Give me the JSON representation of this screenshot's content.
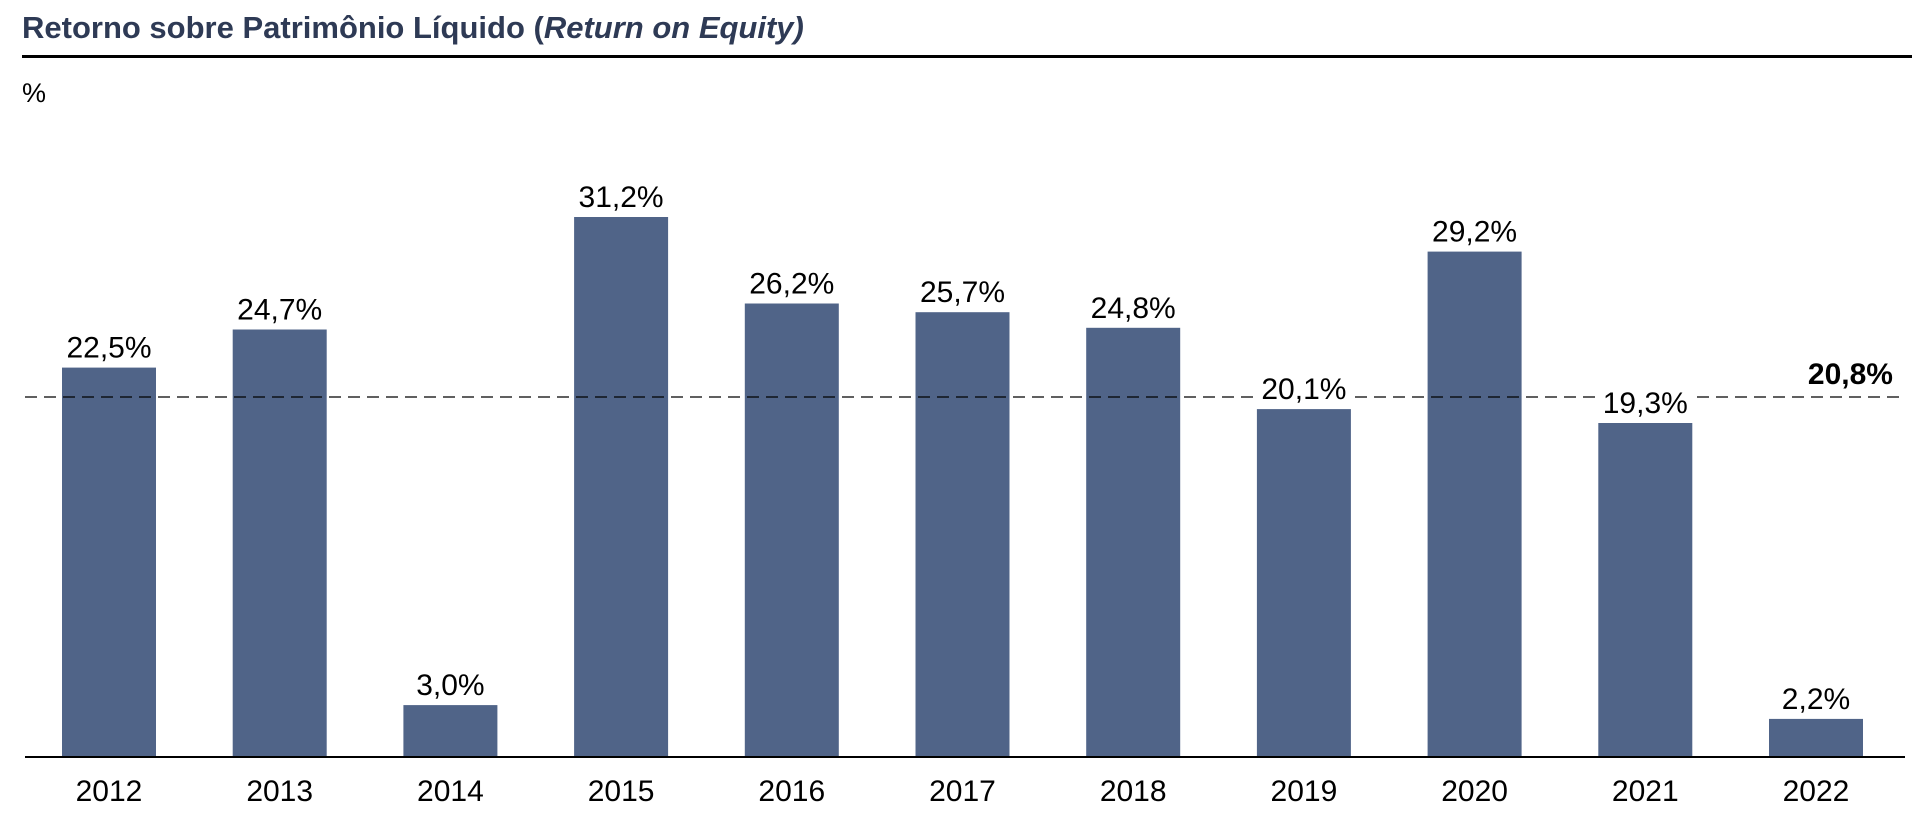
{
  "header": {
    "title_main": "Retorno sobre Patrimônio Líquido (",
    "title_italic": "Return on Equity)",
    "unit": "%"
  },
  "chart_data": {
    "type": "bar",
    "categories": [
      "2012",
      "2013",
      "2014",
      "2015",
      "2016",
      "2017",
      "2018",
      "2019",
      "2020",
      "2021",
      "2022"
    ],
    "values": [
      22.5,
      24.7,
      3.0,
      31.2,
      26.2,
      25.7,
      24.8,
      20.1,
      29.2,
      19.3,
      2.2
    ],
    "data_labels": [
      "22,5%",
      "24,7%",
      "3,0%",
      "31,2%",
      "26,2%",
      "25,7%",
      "24,8%",
      "20,1%",
      "29,2%",
      "19,3%",
      "2,2%"
    ],
    "average": {
      "value": 20.8,
      "label": "20,8%"
    },
    "title": "Retorno sobre Patrimônio Líquido (Return on Equity)",
    "ylabel": "%",
    "xlabel": "",
    "ylim": [
      0,
      31.2
    ],
    "grid": false,
    "legend": "none",
    "colors": {
      "bar": "#506488",
      "text": "#000000",
      "title": "#2e3a55"
    }
  }
}
